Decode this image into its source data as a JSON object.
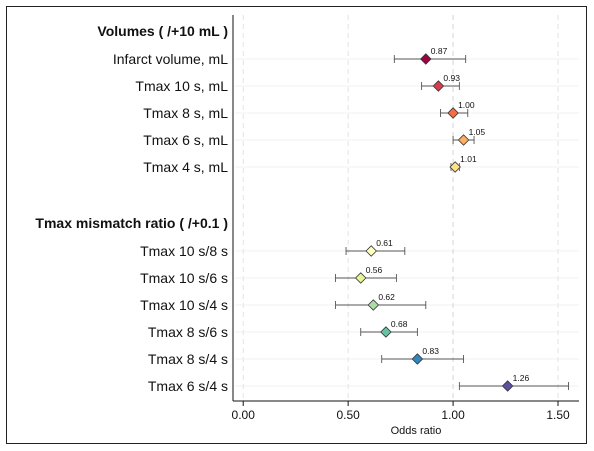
{
  "chart_data": {
    "type": "forest",
    "xlabel": "Odds ratio",
    "xlim": [
      -0.02,
      1.6
    ],
    "xticks": [
      0.0,
      0.5,
      1.0,
      1.5
    ],
    "xtick_labels": [
      "0.00",
      "0.50",
      "1.00",
      "1.50"
    ],
    "reference_line": 1.0,
    "grid": true,
    "sections": [
      {
        "label": "Volumes ( /+10 mL )",
        "rows": [
          {
            "label": "Infarct volume, mL",
            "or": 0.87,
            "lo": 0.72,
            "hi": 1.06,
            "value_label": "0.87",
            "color": "#9e0142"
          },
          {
            "label": "Tmax 10 s, mL",
            "or": 0.93,
            "lo": 0.85,
            "hi": 1.03,
            "value_label": "0.93",
            "color": "#d53e4f"
          },
          {
            "label": "Tmax 8 s, mL",
            "or": 1.0,
            "lo": 0.94,
            "hi": 1.07,
            "value_label": "1.00",
            "color": "#f46d43"
          },
          {
            "label": "Tmax 6 s, mL",
            "or": 1.05,
            "lo": 1.0,
            "hi": 1.1,
            "value_label": "1.05",
            "color": "#fdae61"
          },
          {
            "label": "Tmax 4 s, mL",
            "or": 1.01,
            "lo": 0.99,
            "hi": 1.03,
            "value_label": "1.01",
            "color": "#fee08b"
          }
        ]
      },
      {
        "label": "Tmax mismatch ratio ( /+0.1 )",
        "rows": [
          {
            "label": "Tmax 10 s/8 s",
            "or": 0.61,
            "lo": 0.49,
            "hi": 0.77,
            "value_label": "0.61",
            "color": "#ffffbf"
          },
          {
            "label": "Tmax 10 s/6 s",
            "or": 0.56,
            "lo": 0.44,
            "hi": 0.73,
            "value_label": "0.56",
            "color": "#e6f598"
          },
          {
            "label": "Tmax 10 s/4 s",
            "or": 0.62,
            "lo": 0.44,
            "hi": 0.87,
            "value_label": "0.62",
            "color": "#abdda4"
          },
          {
            "label": "Tmax 8 s/6 s",
            "or": 0.68,
            "lo": 0.56,
            "hi": 0.83,
            "value_label": "0.68",
            "color": "#66c2a5"
          },
          {
            "label": "Tmax 8 s/4 s",
            "or": 0.83,
            "lo": 0.66,
            "hi": 1.05,
            "value_label": "0.83",
            "color": "#3288bd"
          },
          {
            "label": "Tmax 6 s/4 s",
            "or": 1.26,
            "lo": 1.03,
            "hi": 1.55,
            "value_label": "1.26",
            "color": "#5e4fa2"
          }
        ]
      }
    ]
  }
}
